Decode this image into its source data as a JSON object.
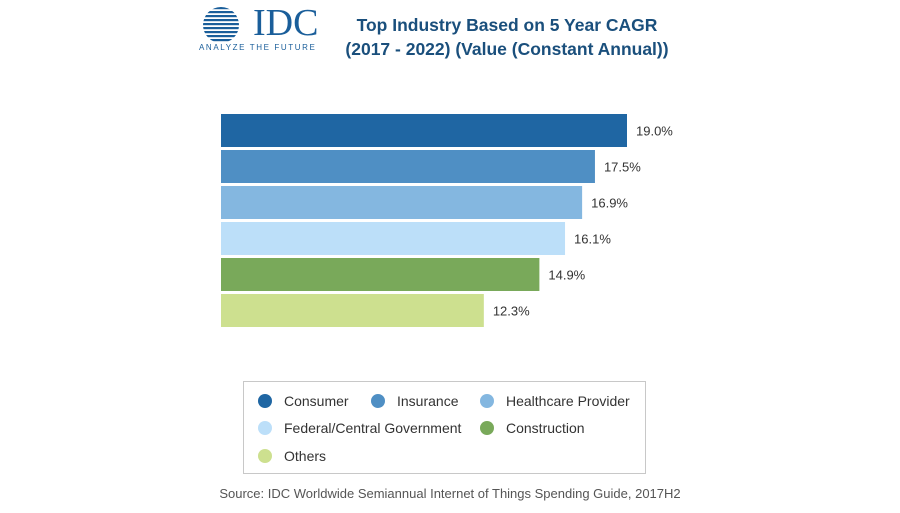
{
  "logo": {
    "text": "IDC",
    "tagline": "ANALYZE THE FUTURE"
  },
  "title_line1": "Top Industry Based on 5 Year CAGR",
  "title_line2": "(2017 - 2022) (Value (Constant Annual))",
  "source": "Source: IDC Worldwide Semiannual Internet of Things Spending Guide, 2017H2",
  "colors": {
    "brand": "#1a5e9a",
    "title": "#1a4f7c"
  },
  "chart_data": {
    "type": "bar",
    "orientation": "horizontal",
    "title": "Top Industry Based on 5 Year CAGR (2017 - 2022) (Value (Constant Annual))",
    "categories": [
      "Consumer",
      "Insurance",
      "Healthcare Provider",
      "Federal/Central Government",
      "Construction",
      "Others"
    ],
    "values": [
      19.0,
      17.5,
      16.9,
      16.1,
      14.9,
      12.3
    ],
    "value_labels": [
      "19.0%",
      "17.5%",
      "16.9%",
      "16.1%",
      "14.9%",
      "12.3%"
    ],
    "colors": [
      "#1f66a3",
      "#4f8fc4",
      "#84b7e0",
      "#bcdff9",
      "#79a95a",
      "#cde08f"
    ],
    "unit": "%",
    "xlim": [
      0,
      19.0
    ],
    "grid": false,
    "legend": "bottom"
  }
}
